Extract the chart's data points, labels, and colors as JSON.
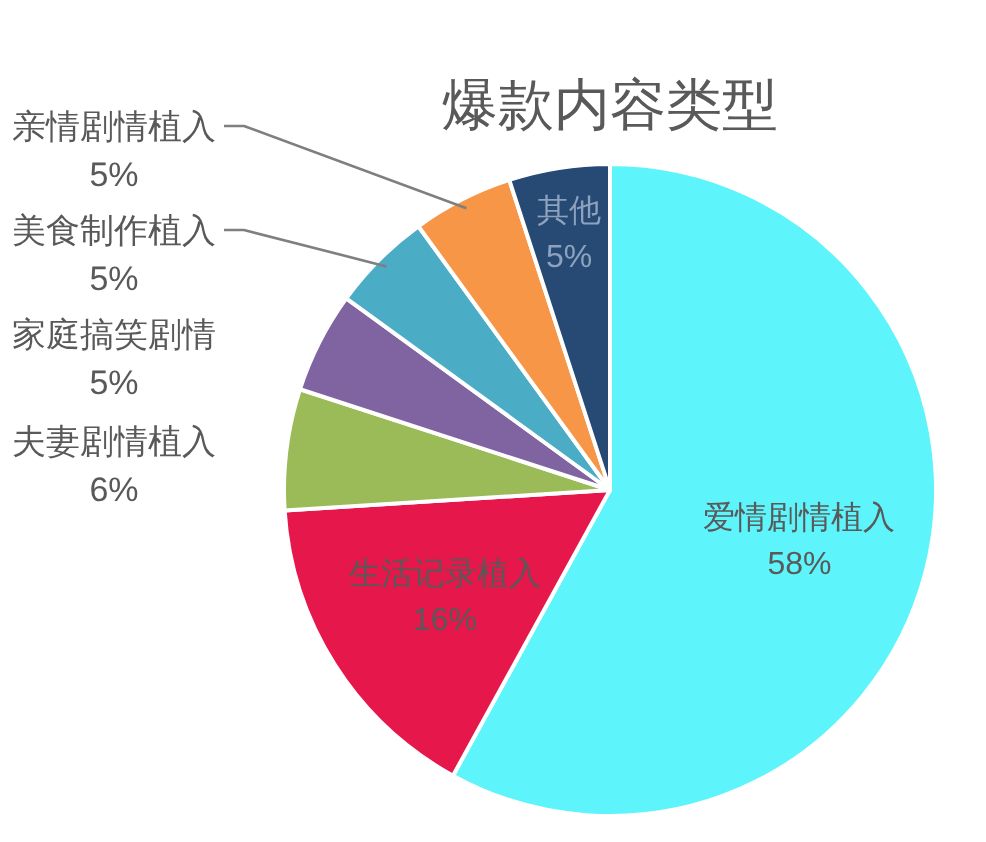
{
  "chart_data": {
    "type": "pie",
    "title": "爆款内容类型",
    "categories": [
      "爱情剧情植入",
      "生活记录植入",
      "夫妻剧情植入",
      "家庭搞笑剧情",
      "美食制作植入",
      "亲情剧情植入",
      "其他"
    ],
    "values": [
      58,
      16,
      6,
      5,
      5,
      5,
      5
    ],
    "colors": [
      "#5ef4fb",
      "#e5174b",
      "#9bbb59",
      "#8064a2",
      "#4bacc6",
      "#f79646",
      "#264a74"
    ],
    "value_labels": [
      "58%",
      "16%",
      "6%",
      "5%",
      "5%",
      "5%",
      "5%"
    ]
  }
}
